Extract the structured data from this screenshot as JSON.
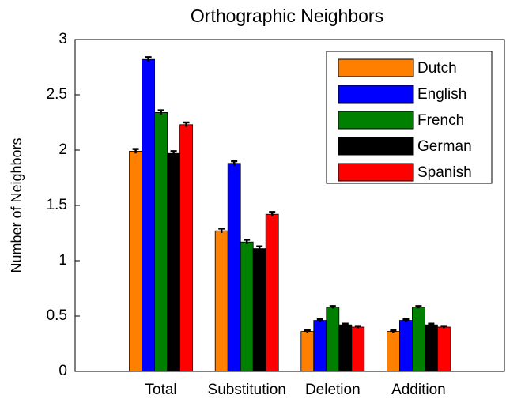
{
  "chart_data": {
    "type": "bar",
    "title": "Orthographic Neighbors",
    "ylabel": "Number of Neighbors",
    "categories": [
      "Total",
      "Substitution",
      "Deletion",
      "Addition"
    ],
    "series": [
      {
        "name": "Dutch",
        "color": "#ff8000",
        "values": [
          1.99,
          1.27,
          0.36,
          0.36
        ],
        "errors": [
          0.02,
          0.02,
          0.01,
          0.01
        ]
      },
      {
        "name": "English",
        "color": "#0000ff",
        "values": [
          2.82,
          1.88,
          0.46,
          0.46
        ],
        "errors": [
          0.02,
          0.02,
          0.01,
          0.01
        ]
      },
      {
        "name": "French",
        "color": "#008000",
        "values": [
          2.34,
          1.17,
          0.58,
          0.58
        ],
        "errors": [
          0.02,
          0.02,
          0.01,
          0.01
        ]
      },
      {
        "name": "German",
        "color": "#000000",
        "values": [
          1.97,
          1.11,
          0.42,
          0.42
        ],
        "errors": [
          0.02,
          0.02,
          0.01,
          0.01
        ]
      },
      {
        "name": "Spanish",
        "color": "#ff0000",
        "values": [
          2.23,
          1.42,
          0.4,
          0.4
        ],
        "errors": [
          0.02,
          0.02,
          0.01,
          0.01
        ]
      }
    ],
    "ylim": [
      0,
      3
    ],
    "yticks": [
      0,
      0.5,
      1,
      1.5,
      2,
      2.5,
      3
    ],
    "grid": false,
    "legend": "upper right"
  }
}
